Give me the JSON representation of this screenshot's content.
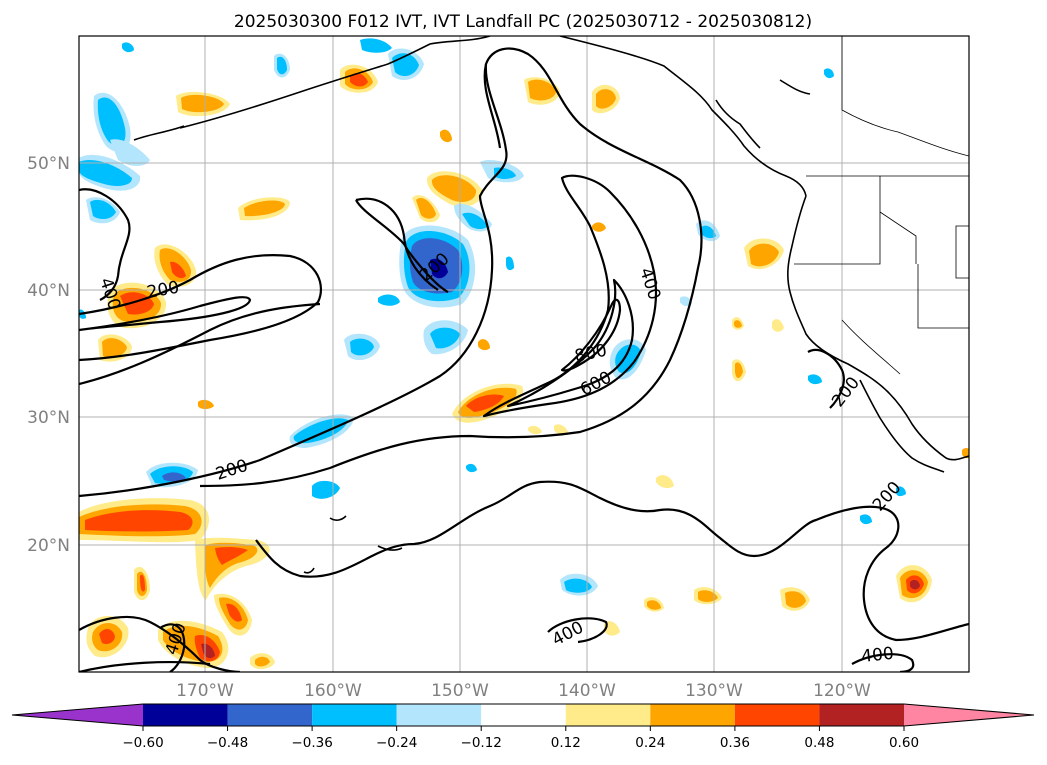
{
  "title": "2025030300 F012 IVT, IVT Landfall PC (2025030712 - 2025030812)",
  "lat_labels": [
    "50°N",
    "40°N",
    "30°N",
    "20°N"
  ],
  "lon_labels": [
    "170°W",
    "160°W",
    "150°W",
    "140°W",
    "130°W",
    "120°W"
  ],
  "colorbar": {
    "ticks": [
      "−0.60",
      "−0.48",
      "−0.36",
      "−0.24",
      "−0.12",
      "0.12",
      "0.24",
      "0.36",
      "0.48",
      "0.60"
    ],
    "colors": [
      "#9933cc",
      "#000099",
      "#3366cc",
      "#00bfff",
      "#b3e5fc",
      "#ffffff",
      "#ffeb8a",
      "#ffa500",
      "#ff4500",
      "#b22222",
      "#ff85a2"
    ]
  },
  "contour_labels": {
    "c400_left": "400",
    "c200_left": "200",
    "c200_center": "200",
    "c200_south": "200",
    "c400_core": "400",
    "c800": "800",
    "c600": "600",
    "c200_coast": "200",
    "c200_se": "200",
    "c400_sw": "400",
    "c400_s": "400",
    "c400_se": "400"
  },
  "chart_data": {
    "type": "map",
    "map_extent": {
      "lon": [
        -180,
        -110
      ],
      "lat": [
        10,
        60
      ]
    },
    "gridlines": {
      "lon": [
        -170,
        -160,
        -150,
        -140,
        -130,
        -120
      ],
      "lat": [
        50,
        40,
        30,
        20
      ]
    },
    "contour_levels": [
      200,
      400,
      600,
      800
    ],
    "colorbar_levels": [
      -0.6,
      -0.48,
      -0.36,
      -0.24,
      -0.12,
      0.12,
      0.24,
      0.36,
      0.48,
      0.6
    ]
  }
}
